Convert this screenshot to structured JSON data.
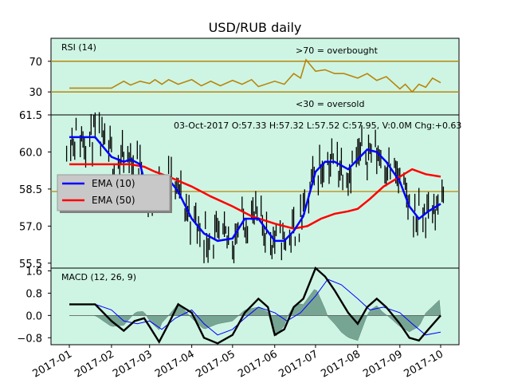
{
  "chart_data": [
    {
      "panel": "rsi",
      "type": "line",
      "title": "USD/RUB daily",
      "label": "RSI (14)",
      "ylim": [
        0,
        100
      ],
      "yticks": [
        "70",
        "30"
      ],
      "ytick_values": [
        70,
        30
      ],
      "hlines": [
        70,
        30
      ],
      "annotations": {
        "top": ">70 = overbought",
        "bottom": "<30 = oversold"
      },
      "series": [
        {
          "color": "#b8860b",
          "x": [
            "2017-01-01",
            "2017-01-15",
            "2017-02-01",
            "2017-02-10",
            "2017-02-15",
            "2017-02-22",
            "2017-03-01",
            "2017-03-05",
            "2017-03-10",
            "2017-03-15",
            "2017-03-22",
            "2017-04-01",
            "2017-04-08",
            "2017-04-15",
            "2017-04-22",
            "2017-05-01",
            "2017-05-08",
            "2017-05-15",
            "2017-05-20",
            "2017-06-01",
            "2017-06-08",
            "2017-06-15",
            "2017-06-20",
            "2017-06-24",
            "2017-07-01",
            "2017-07-08",
            "2017-07-15",
            "2017-07-22",
            "2017-08-01",
            "2017-08-08",
            "2017-08-15",
            "2017-08-22",
            "2017-09-01",
            "2017-09-05",
            "2017-09-10",
            "2017-09-15",
            "2017-09-20",
            "2017-09-25",
            "2017-10-01"
          ],
          "values": [
            35,
            35,
            35,
            44,
            39,
            44,
            41,
            46,
            40,
            46,
            40,
            46,
            38,
            44,
            38,
            45,
            40,
            46,
            37,
            44,
            40,
            54,
            48,
            72,
            57,
            59,
            54,
            54,
            48,
            54,
            45,
            50,
            34,
            40,
            30,
            40,
            36,
            48,
            42
          ]
        }
      ]
    },
    {
      "panel": "price",
      "type": "ohlc",
      "info": "03-Oct-2017 O:57.33 H:57.32 L:57.52 C:57.95, V:0.0M Chg:+0.63",
      "ylim": [
        55.3,
        61.5
      ],
      "yticks": [
        "61.5",
        "60.0",
        "58.5",
        "57.0",
        "55.5"
      ],
      "ytick_values": [
        61.5,
        60.0,
        58.5,
        57.0,
        55.5
      ],
      "hline": 58.4,
      "legend": {
        "placement": "center-left",
        "entries": [
          {
            "label": "EMA (10)",
            "color": "#0000ff"
          },
          {
            "label": "EMA (50)",
            "color": "#ff0000"
          }
        ]
      },
      "series": [
        {
          "name": "EMA (10)",
          "color": "#0000ff",
          "x": [
            "2017-01-01",
            "2017-01-20",
            "2017-02-01",
            "2017-02-10",
            "2017-02-15",
            "2017-02-22",
            "2017-03-01",
            "2017-03-08",
            "2017-03-15",
            "2017-03-22",
            "2017-04-01",
            "2017-04-10",
            "2017-04-20",
            "2017-05-01",
            "2017-05-10",
            "2017-05-20",
            "2017-06-01",
            "2017-06-08",
            "2017-06-15",
            "2017-06-22",
            "2017-07-01",
            "2017-07-08",
            "2017-07-15",
            "2017-07-25",
            "2017-08-01",
            "2017-08-08",
            "2017-08-15",
            "2017-08-22",
            "2017-09-01",
            "2017-09-08",
            "2017-09-15",
            "2017-09-22",
            "2017-10-01"
          ],
          "values": [
            60.6,
            60.6,
            59.8,
            59.6,
            59.7,
            59.5,
            58.0,
            58.6,
            58.9,
            58.4,
            57.3,
            56.7,
            56.4,
            56.5,
            57.3,
            57.3,
            56.4,
            56.4,
            56.8,
            57.4,
            59.2,
            59.6,
            59.6,
            59.3,
            59.7,
            60.1,
            60.0,
            59.6,
            58.8,
            57.8,
            57.3,
            57.6,
            57.9
          ]
        },
        {
          "name": "EMA (50)",
          "color": "#ff0000",
          "x": [
            "2017-01-01",
            "2017-02-15",
            "2017-02-25",
            "2017-03-05",
            "2017-03-15",
            "2017-04-01",
            "2017-04-15",
            "2017-05-01",
            "2017-05-15",
            "2017-06-01",
            "2017-06-15",
            "2017-06-25",
            "2017-07-05",
            "2017-07-15",
            "2017-07-25",
            "2017-08-01",
            "2017-08-10",
            "2017-08-20",
            "2017-09-01",
            "2017-09-10",
            "2017-09-20",
            "2017-10-01"
          ],
          "values": [
            59.5,
            59.5,
            59.4,
            59.2,
            59.0,
            58.6,
            58.2,
            57.8,
            57.4,
            57.1,
            56.9,
            57.0,
            57.3,
            57.5,
            57.6,
            57.7,
            58.1,
            58.6,
            59.0,
            59.3,
            59.1,
            59.0
          ]
        }
      ]
    },
    {
      "panel": "macd",
      "type": "line",
      "label": "MACD (12, 26, 9)",
      "ylim": [
        -1.05,
        1.7
      ],
      "yticks": [
        "1.6",
        "0.8",
        "0.0",
        "−0.8"
      ],
      "ytick_values": [
        1.6,
        0.8,
        0.0,
        -0.8
      ],
      "xticks": [
        "2017-01",
        "2017-02",
        "2017-03",
        "2017-04",
        "2017-05",
        "2017-06",
        "2017-07",
        "2017-08",
        "2017-09",
        "2017-10"
      ],
      "xtick_values": [
        "2017-01-01",
        "2017-02-01",
        "2017-03-01",
        "2017-04-01",
        "2017-05-01",
        "2017-06-01",
        "2017-07-01",
        "2017-08-01",
        "2017-09-01",
        "2017-10-01"
      ],
      "series": [
        {
          "color": "#000000",
          "x": [
            "2017-01-01",
            "2017-01-20",
            "2017-02-01",
            "2017-02-10",
            "2017-02-18",
            "2017-02-25",
            "2017-03-01",
            "2017-03-08",
            "2017-03-15",
            "2017-03-22",
            "2017-04-01",
            "2017-04-10",
            "2017-04-20",
            "2017-05-01",
            "2017-05-10",
            "2017-05-20",
            "2017-05-27",
            "2017-06-01",
            "2017-06-08",
            "2017-06-15",
            "2017-06-22",
            "2017-07-01",
            "2017-07-08",
            "2017-07-15",
            "2017-07-25",
            "2017-08-01",
            "2017-08-08",
            "2017-08-15",
            "2017-08-22",
            "2017-09-01",
            "2017-09-08",
            "2017-09-15",
            "2017-09-22",
            "2017-10-01"
          ],
          "values": [
            0.4,
            0.4,
            -0.2,
            -0.55,
            -0.2,
            -0.1,
            -0.4,
            -0.95,
            -0.3,
            0.4,
            0.1,
            -0.8,
            -1.0,
            -0.7,
            0.1,
            0.6,
            0.3,
            -0.7,
            -0.5,
            0.3,
            0.6,
            1.7,
            1.4,
            0.9,
            0.1,
            -0.3,
            0.3,
            0.6,
            0.3,
            -0.3,
            -0.8,
            -0.9,
            -0.5,
            0.0
          ]
        },
        {
          "color": "#0000ff",
          "x": [
            "2017-01-01",
            "2017-01-20",
            "2017-02-01",
            "2017-02-10",
            "2017-02-20",
            "2017-03-01",
            "2017-03-10",
            "2017-03-20",
            "2017-04-01",
            "2017-04-10",
            "2017-04-20",
            "2017-05-01",
            "2017-05-10",
            "2017-05-20",
            "2017-06-01",
            "2017-06-10",
            "2017-06-20",
            "2017-07-01",
            "2017-07-10",
            "2017-07-20",
            "2017-08-01",
            "2017-08-10",
            "2017-08-20",
            "2017-09-01",
            "2017-09-10",
            "2017-09-20",
            "2017-10-01"
          ],
          "values": [
            0.4,
            0.4,
            0.2,
            -0.2,
            -0.3,
            -0.2,
            -0.5,
            -0.1,
            0.2,
            -0.3,
            -0.7,
            -0.5,
            -0.1,
            0.3,
            0.1,
            -0.2,
            0.1,
            0.7,
            1.3,
            1.1,
            0.6,
            0.2,
            0.3,
            0.1,
            -0.3,
            -0.7,
            -0.6
          ]
        }
      ]
    }
  ]
}
